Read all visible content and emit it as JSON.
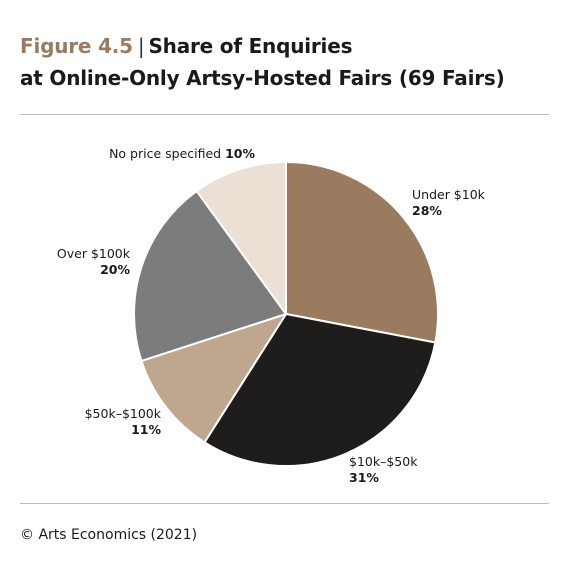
{
  "header": {
    "figure_label": "Figure 4.5",
    "separator": "|",
    "title_line1": "Share of Enquiries",
    "title_line2": "at Online-Only Artsy-Hosted Fairs (69 Fairs)"
  },
  "chart_data": {
    "type": "pie",
    "title": "Share of Enquiries at Online-Only Artsy-Hosted Fairs (69 Fairs)",
    "unit": "%",
    "slices": [
      {
        "label": "Under $10k",
        "value": 28,
        "display": "28%",
        "color": "#9a7b60"
      },
      {
        "label": "$10k–$50k",
        "value": 31,
        "display": "31%",
        "color": "#1f1c1c"
      },
      {
        "label": "$50k–$100k",
        "value": 11,
        "display": "11%",
        "color": "#bfa68e"
      },
      {
        "label": "Over $100k",
        "value": 20,
        "display": "20%",
        "color": "#7c7c7c"
      },
      {
        "label": "No price specified",
        "value": 10,
        "display": "10%",
        "color": "#ece0d5"
      }
    ]
  },
  "footer": {
    "source": "© Arts Economics (2021)"
  }
}
